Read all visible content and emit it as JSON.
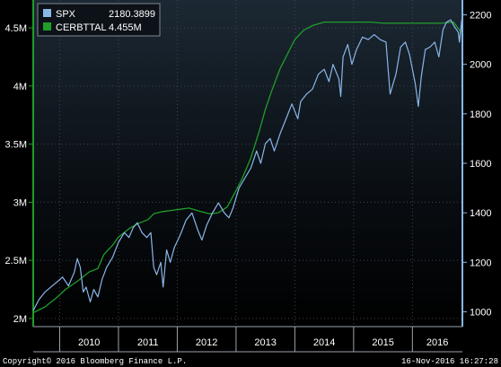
{
  "chart_data": {
    "type": "line",
    "legend": {
      "position": "top-left",
      "entries": [
        {
          "name": "SPX",
          "value": "2180.3899",
          "color": "#8ab6e8"
        },
        {
          "name": "CERBTTAL",
          "value": "4.455M",
          "color": "#1f9e2a"
        }
      ]
    },
    "x_labels": [
      "2010",
      "2011",
      "2012",
      "2013",
      "2014",
      "2015",
      "2016"
    ],
    "x_range": [
      2009.55,
      2016.85
    ],
    "left_axis": {
      "ticks": [
        {
          "value": 2.0,
          "label": "2M"
        },
        {
          "value": 2.5,
          "label": "2.5M"
        },
        {
          "value": 3.0,
          "label": "3M"
        },
        {
          "value": 3.5,
          "label": "3.5M"
        },
        {
          "value": 4.0,
          "label": "4M"
        },
        {
          "value": 4.5,
          "label": "4.5M"
        }
      ],
      "range": [
        1.93,
        4.74
      ]
    },
    "right_axis": {
      "ticks": [
        {
          "value": 1000,
          "label": "1000"
        },
        {
          "value": 1200,
          "label": "1200"
        },
        {
          "value": 1400,
          "label": "1400"
        },
        {
          "value": 1600,
          "label": "1600"
        },
        {
          "value": 1800,
          "label": "1800"
        },
        {
          "value": 2000,
          "label": "2000"
        },
        {
          "value": 2200,
          "label": "2200"
        }
      ],
      "range": [
        940,
        2260
      ]
    },
    "series": [
      {
        "name": "SPX",
        "axis": "right",
        "color": "#8ab6e8",
        "points": [
          [
            2009.55,
            1005
          ],
          [
            2009.65,
            1050
          ],
          [
            2009.75,
            1080
          ],
          [
            2009.85,
            1100
          ],
          [
            2009.95,
            1120
          ],
          [
            2010.05,
            1140
          ],
          [
            2010.15,
            1105
          ],
          [
            2010.25,
            1160
          ],
          [
            2010.3,
            1215
          ],
          [
            2010.35,
            1180
          ],
          [
            2010.4,
            1080
          ],
          [
            2010.45,
            1100
          ],
          [
            2010.52,
            1040
          ],
          [
            2010.58,
            1090
          ],
          [
            2010.65,
            1060
          ],
          [
            2010.72,
            1130
          ],
          [
            2010.8,
            1180
          ],
          [
            2010.9,
            1220
          ],
          [
            2011.0,
            1280
          ],
          [
            2011.1,
            1320
          ],
          [
            2011.18,
            1300
          ],
          [
            2011.25,
            1340
          ],
          [
            2011.32,
            1360
          ],
          [
            2011.4,
            1320
          ],
          [
            2011.48,
            1300
          ],
          [
            2011.55,
            1320
          ],
          [
            2011.6,
            1180
          ],
          [
            2011.65,
            1150
          ],
          [
            2011.72,
            1200
          ],
          [
            2011.76,
            1100
          ],
          [
            2011.82,
            1250
          ],
          [
            2011.88,
            1200
          ],
          [
            2011.95,
            1260
          ],
          [
            2012.05,
            1310
          ],
          [
            2012.15,
            1370
          ],
          [
            2012.25,
            1400
          ],
          [
            2012.35,
            1330
          ],
          [
            2012.42,
            1290
          ],
          [
            2012.5,
            1350
          ],
          [
            2012.6,
            1400
          ],
          [
            2012.7,
            1440
          ],
          [
            2012.8,
            1400
          ],
          [
            2012.88,
            1380
          ],
          [
            2012.95,
            1420
          ],
          [
            2013.05,
            1500
          ],
          [
            2013.15,
            1540
          ],
          [
            2013.25,
            1580
          ],
          [
            2013.35,
            1650
          ],
          [
            2013.42,
            1600
          ],
          [
            2013.5,
            1680
          ],
          [
            2013.58,
            1700
          ],
          [
            2013.65,
            1650
          ],
          [
            2013.75,
            1720
          ],
          [
            2013.85,
            1780
          ],
          [
            2013.95,
            1840
          ],
          [
            2014.05,
            1780
          ],
          [
            2014.1,
            1850
          ],
          [
            2014.2,
            1880
          ],
          [
            2014.3,
            1900
          ],
          [
            2014.4,
            1960
          ],
          [
            2014.5,
            1980
          ],
          [
            2014.58,
            1930
          ],
          [
            2014.65,
            2000
          ],
          [
            2014.75,
            1940
          ],
          [
            2014.78,
            1870
          ],
          [
            2014.82,
            2030
          ],
          [
            2014.9,
            2080
          ],
          [
            2014.97,
            2000
          ],
          [
            2015.05,
            2060
          ],
          [
            2015.15,
            2110
          ],
          [
            2015.25,
            2100
          ],
          [
            2015.35,
            2120
          ],
          [
            2015.45,
            2100
          ],
          [
            2015.55,
            2090
          ],
          [
            2015.62,
            1880
          ],
          [
            2015.67,
            1920
          ],
          [
            2015.72,
            1960
          ],
          [
            2015.8,
            2070
          ],
          [
            2015.88,
            2090
          ],
          [
            2015.95,
            2040
          ],
          [
            2016.05,
            1920
          ],
          [
            2016.1,
            1830
          ],
          [
            2016.15,
            1950
          ],
          [
            2016.22,
            2060
          ],
          [
            2016.3,
            2070
          ],
          [
            2016.38,
            2090
          ],
          [
            2016.45,
            2030
          ],
          [
            2016.52,
            2140
          ],
          [
            2016.58,
            2170
          ],
          [
            2016.65,
            2180
          ],
          [
            2016.72,
            2150
          ],
          [
            2016.78,
            2130
          ],
          [
            2016.8,
            2090
          ],
          [
            2016.84,
            2180
          ]
        ]
      },
      {
        "name": "CERBTTAL",
        "axis": "left",
        "color": "#1f9e2a",
        "points": [
          [
            2009.55,
            2.05
          ],
          [
            2009.75,
            2.1
          ],
          [
            2009.95,
            2.18
          ],
          [
            2010.1,
            2.25
          ],
          [
            2010.3,
            2.32
          ],
          [
            2010.5,
            2.4
          ],
          [
            2010.65,
            2.43
          ],
          [
            2010.75,
            2.55
          ],
          [
            2010.9,
            2.63
          ],
          [
            2011.0,
            2.7
          ],
          [
            2011.2,
            2.78
          ],
          [
            2011.35,
            2.82
          ],
          [
            2011.5,
            2.85
          ],
          [
            2011.6,
            2.9
          ],
          [
            2011.75,
            2.92
          ],
          [
            2011.9,
            2.93
          ],
          [
            2012.05,
            2.94
          ],
          [
            2012.2,
            2.95
          ],
          [
            2012.4,
            2.92
          ],
          [
            2012.55,
            2.9
          ],
          [
            2012.7,
            2.91
          ],
          [
            2012.85,
            2.96
          ],
          [
            2013.0,
            3.1
          ],
          [
            2013.1,
            3.2
          ],
          [
            2013.25,
            3.38
          ],
          [
            2013.4,
            3.62
          ],
          [
            2013.5,
            3.8
          ],
          [
            2013.6,
            3.95
          ],
          [
            2013.75,
            4.15
          ],
          [
            2013.9,
            4.3
          ],
          [
            2014.0,
            4.4
          ],
          [
            2014.15,
            4.48
          ],
          [
            2014.3,
            4.52
          ],
          [
            2014.5,
            4.55
          ],
          [
            2014.7,
            4.55
          ],
          [
            2014.9,
            4.55
          ],
          [
            2015.1,
            4.55
          ],
          [
            2015.3,
            4.55
          ],
          [
            2015.5,
            4.54
          ],
          [
            2015.7,
            4.54
          ],
          [
            2015.9,
            4.54
          ],
          [
            2016.1,
            4.54
          ],
          [
            2016.3,
            4.54
          ],
          [
            2016.5,
            4.54
          ],
          [
            2016.7,
            4.55
          ],
          [
            2016.84,
            4.455
          ]
        ]
      }
    ],
    "footer": {
      "left": "Copyright© 2016 Bloomberg Finance L.P.",
      "right": "16-Nov-2016 16:27:28"
    }
  }
}
